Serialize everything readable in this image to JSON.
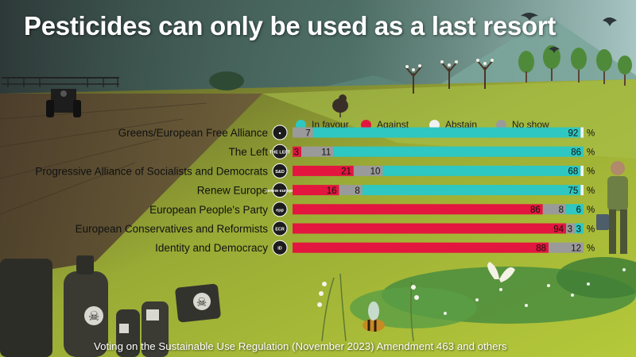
{
  "title": "Pesticides can only be used as a last resort",
  "footer": "Voting on the Sustainable Use Regulation (November 2023) Amendment 463 and others",
  "legend": [
    {
      "label": "In favour",
      "color": "#2ec7c1"
    },
    {
      "label": "Against",
      "color": "#e3163f"
    },
    {
      "label": "Abstain",
      "color": "#f2f2f2"
    },
    {
      "label": "No show",
      "color": "#9a9a9a"
    }
  ],
  "chart_data": {
    "type": "bar",
    "orientation": "horizontal",
    "stacked": true,
    "unit": "%",
    "categories": [
      "Greens/European Free Alliance",
      "The Left",
      "Progressive Alliance of Socialists and Democrats",
      "Renew Europe",
      "European People's Party",
      "European Conservatives and Reformists",
      "Identity and Democracy"
    ],
    "group_logos": [
      "●",
      "THE LEFT",
      "S&D",
      "renew europe",
      "epp",
      "ECR",
      "ID"
    ],
    "series": [
      {
        "name": "Against",
        "color": "#e3163f",
        "values": [
          0,
          3,
          21,
          16,
          86,
          94,
          88
        ]
      },
      {
        "name": "No show",
        "color": "#9a9a9a",
        "values": [
          7,
          11,
          10,
          8,
          8,
          3,
          12
        ]
      },
      {
        "name": "In favour",
        "color": "#2ec7c1",
        "values": [
          92,
          86,
          68,
          75,
          6,
          3,
          0
        ]
      },
      {
        "name": "Abstain",
        "color": "#f2f2f2",
        "values": [
          1,
          0,
          1,
          1,
          0,
          0,
          0
        ]
      }
    ],
    "data_labels": [
      [
        "7",
        "92"
      ],
      [
        "3",
        "11",
        "86"
      ],
      [
        "21",
        "10",
        "68"
      ],
      [
        "16",
        "8",
        "75"
      ],
      [
        "86",
        "8",
        "6"
      ],
      [
        "94",
        "3",
        "3"
      ],
      [
        "88",
        "12"
      ]
    ],
    "xlim": [
      0,
      100
    ]
  }
}
